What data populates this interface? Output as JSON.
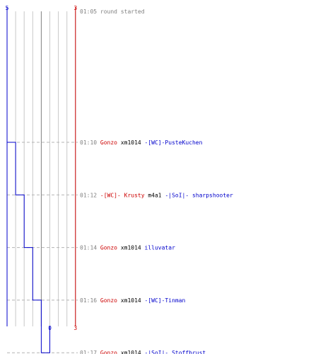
{
  "chart_data": {
    "type": "step-timeline",
    "left_axis": {
      "top_label": "5",
      "bottom_label": "0",
      "color": "#0000cc"
    },
    "right_axis": {
      "top_label": "3",
      "bottom_label": "3",
      "color": "#cc0000"
    },
    "grid_columns": 8,
    "colors": {
      "blue": "#0000cc",
      "red": "#cc0000",
      "grid": "#c8c8c8",
      "time": "#808080",
      "text": "#000000"
    },
    "events": [
      {
        "time": "01:05",
        "parts": [
          {
            "t": "round started",
            "c": "time"
          }
        ]
      },
      {
        "time": "01:10",
        "parts": [
          {
            "t": "Gonzo",
            "c": "red"
          },
          {
            "t": "xm1014",
            "c": "text"
          },
          {
            "t": "-[WC]-PusteKuchen",
            "c": "blue"
          }
        ]
      },
      {
        "time": "01:12",
        "parts": [
          {
            "t": "-[WC]- Krusty",
            "c": "red"
          },
          {
            "t": "m4a1",
            "c": "text"
          },
          {
            "t": "-|SoI|- sharpshooter",
            "c": "blue"
          }
        ]
      },
      {
        "time": "01:14",
        "parts": [
          {
            "t": "Gonzo",
            "c": "red"
          },
          {
            "t": "xm1014",
            "c": "text"
          },
          {
            "t": "illuvatar",
            "c": "blue"
          }
        ]
      },
      {
        "time": "01:16",
        "parts": [
          {
            "t": "Gonzo",
            "c": "red"
          },
          {
            "t": "xm1014",
            "c": "text"
          },
          {
            "t": "-[WC]-Tinman",
            "c": "blue"
          }
        ]
      },
      {
        "time": "01:17",
        "parts": [
          {
            "t": "Gonzo",
            "c": "red"
          },
          {
            "t": "xm1014",
            "c": "text"
          },
          {
            "t": "-|SoI|- Stoffbrust",
            "c": "blue"
          }
        ]
      }
    ],
    "blue_remaining": [
      5,
      4,
      3,
      2,
      1,
      0
    ],
    "red_remaining": [
      3,
      3,
      3,
      3,
      3,
      3
    ]
  }
}
